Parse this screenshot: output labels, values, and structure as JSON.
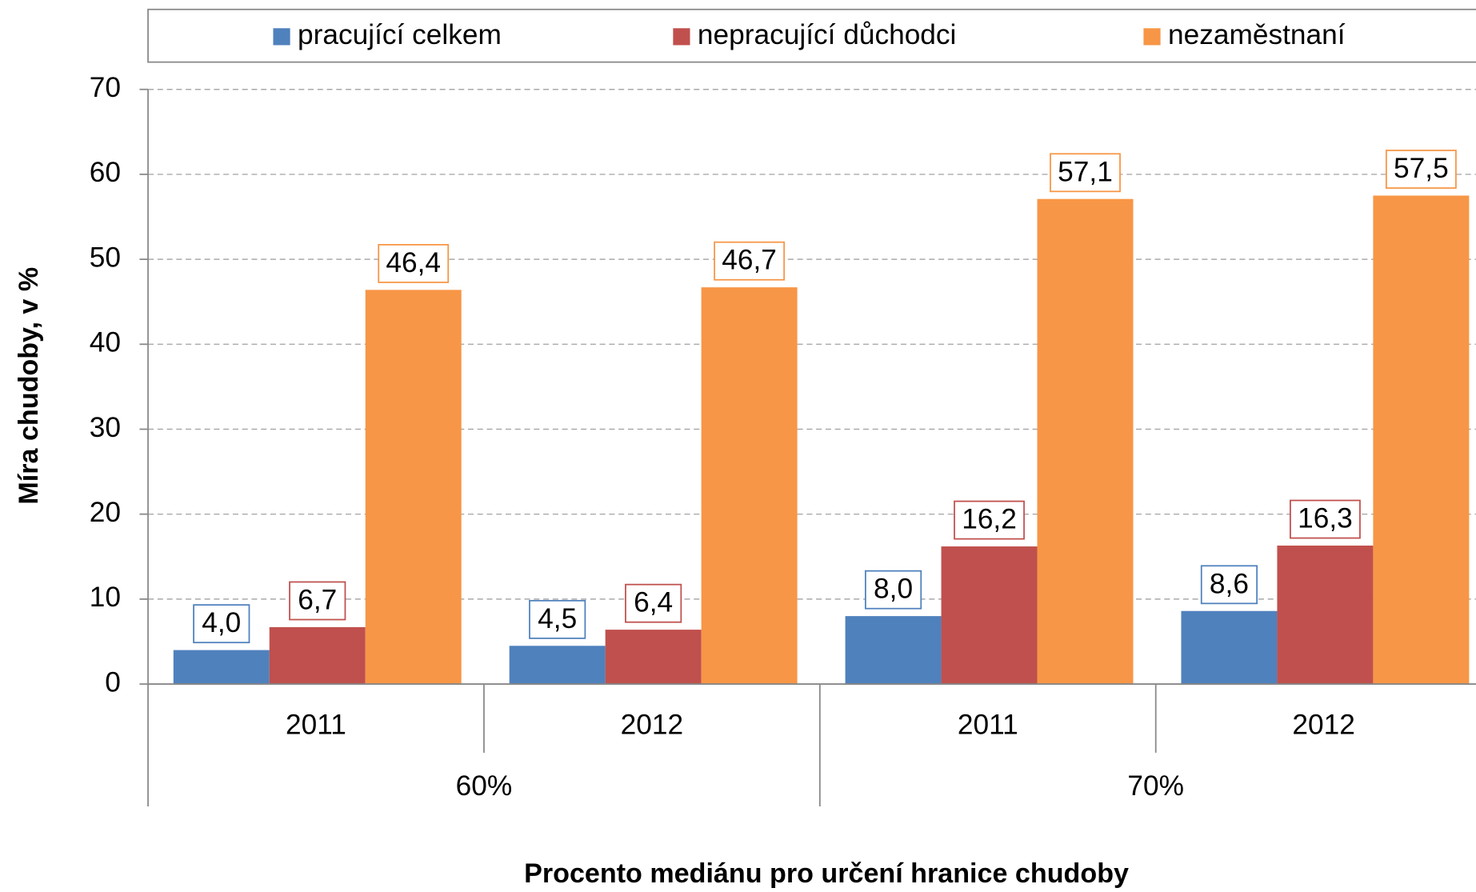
{
  "chart_data": {
    "type": "bar",
    "x_label": "Procento mediánu pro určení hranice chudoby",
    "y_label": "Míra chudoby, v %",
    "categories": [
      "2011",
      "2012",
      "2011",
      "2012"
    ],
    "groups": [
      "60%",
      "70%"
    ],
    "series": [
      {
        "name": "pracující celkem",
        "color": "#4f81bd",
        "values": [
          4.0,
          4.5,
          8.0,
          8.6
        ],
        "value_labels": [
          "4,0",
          "4,5",
          "8,0",
          "8,6"
        ]
      },
      {
        "name": "nepracující důchodci",
        "color": "#c0504d",
        "values": [
          6.7,
          6.4,
          16.2,
          16.3
        ],
        "value_labels": [
          "6,7",
          "6,4",
          "16,2",
          "16,3"
        ]
      },
      {
        "name": "nezaměstnaní",
        "color": "#f79646",
        "values": [
          46.4,
          46.7,
          57.1,
          57.5
        ],
        "value_labels": [
          "46,4",
          "46,7",
          "57,1",
          "57,5"
        ]
      }
    ],
    "ylim": [
      0,
      70
    ],
    "yticks": [
      0,
      10,
      20,
      30,
      40,
      50,
      60,
      70
    ],
    "grid": true,
    "legend": "top"
  }
}
